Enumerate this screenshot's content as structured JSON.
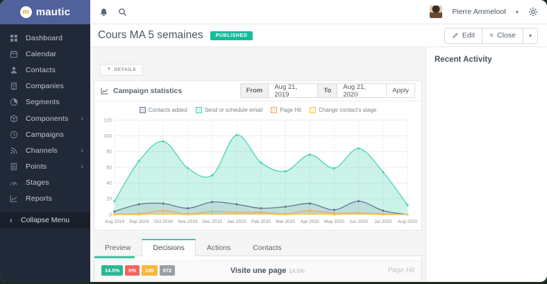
{
  "topbar": {
    "logo_text": "mautic",
    "user_name": "Pierre Ammeloot"
  },
  "sidebar": {
    "items": [
      {
        "label": "Dashboard",
        "icon": "dashboard",
        "submenu": false
      },
      {
        "label": "Calendar",
        "icon": "calendar",
        "submenu": false
      },
      {
        "label": "Contacts",
        "icon": "contacts",
        "submenu": false
      },
      {
        "label": "Companies",
        "icon": "companies",
        "submenu": false
      },
      {
        "label": "Segments",
        "icon": "segments",
        "submenu": false
      },
      {
        "label": "Components",
        "icon": "components",
        "submenu": true
      },
      {
        "label": "Campaigns",
        "icon": "campaigns",
        "submenu": false
      },
      {
        "label": "Channels",
        "icon": "channels",
        "submenu": true
      },
      {
        "label": "Points",
        "icon": "points",
        "submenu": true
      },
      {
        "label": "Stages",
        "icon": "stages",
        "submenu": false
      },
      {
        "label": "Reports",
        "icon": "reports",
        "submenu": false
      }
    ],
    "collapse_label": "Collapse Menu"
  },
  "page": {
    "title": "Cours MA 5 semaines",
    "status_badge": "PUBLISHED",
    "edit_label": "Edit",
    "close_label": "Close",
    "details_label": "DETAILS"
  },
  "right_panel": {
    "title": "Recent Activity"
  },
  "stats_card": {
    "title": "Campaign statistics",
    "from_label": "From",
    "from_value": "Aug 21, 2019",
    "to_label": "To",
    "to_value": "Aug 21, 2020",
    "apply_label": "Apply"
  },
  "chart_data": {
    "type": "area",
    "title": "Campaign statistics",
    "x_labels": [
      "Aug 2019",
      "Sep 2019",
      "Oct 2019",
      "Nov 2019",
      "Dec 2019",
      "Jan 2020",
      "Feb 2020",
      "Mar 2020",
      "Apr 2020",
      "May 2020",
      "Jun 2020",
      "Jul 2020",
      "Aug 2020"
    ],
    "ylim": [
      0,
      120
    ],
    "y_ticks": [
      0,
      20,
      40,
      60,
      80,
      100,
      120
    ],
    "grid": true,
    "legend_position": "top",
    "series": [
      {
        "name": "Contacts added",
        "color": "#65758f",
        "fill_opacity": 0.15,
        "values": [
          4,
          13,
          14,
          8,
          16,
          13,
          8,
          10,
          14,
          6,
          17,
          5,
          0
        ]
      },
      {
        "name": "Send or schedule email",
        "color": "#49d3b4",
        "fill_opacity": 0.28,
        "values": [
          17,
          68,
          93,
          59,
          50,
          101,
          66,
          55,
          76,
          59,
          84,
          54,
          12
        ]
      },
      {
        "name": "Page Hit",
        "color": "#f0a860",
        "fill_opacity": 0.18,
        "values": [
          1,
          1,
          5,
          1,
          4,
          3,
          3,
          1,
          5,
          2,
          2,
          1,
          0
        ]
      },
      {
        "name": "Change contact's stage",
        "color": "#f2c94c",
        "fill_opacity": 0.15,
        "values": [
          0,
          0,
          1,
          0,
          1,
          1,
          1,
          0,
          1,
          0,
          1,
          0,
          0
        ]
      }
    ]
  },
  "tabs": {
    "items": [
      {
        "label": "Preview",
        "active": false
      },
      {
        "label": "Decisions",
        "active": true
      },
      {
        "label": "Actions",
        "active": false
      },
      {
        "label": "Contacts",
        "active": false
      }
    ]
  },
  "decision_row": {
    "progress_percent": 14.5,
    "badges": [
      {
        "label": "14.5%",
        "color": "#2ab793"
      },
      {
        "label": "0%",
        "color": "#f4655f"
      },
      {
        "label": "145",
        "color": "#f7b83d"
      },
      {
        "label": "972",
        "color": "#98a0a6"
      }
    ],
    "title": "Visite une page",
    "title_note": "14.5%",
    "event_type": "Page Hit"
  }
}
